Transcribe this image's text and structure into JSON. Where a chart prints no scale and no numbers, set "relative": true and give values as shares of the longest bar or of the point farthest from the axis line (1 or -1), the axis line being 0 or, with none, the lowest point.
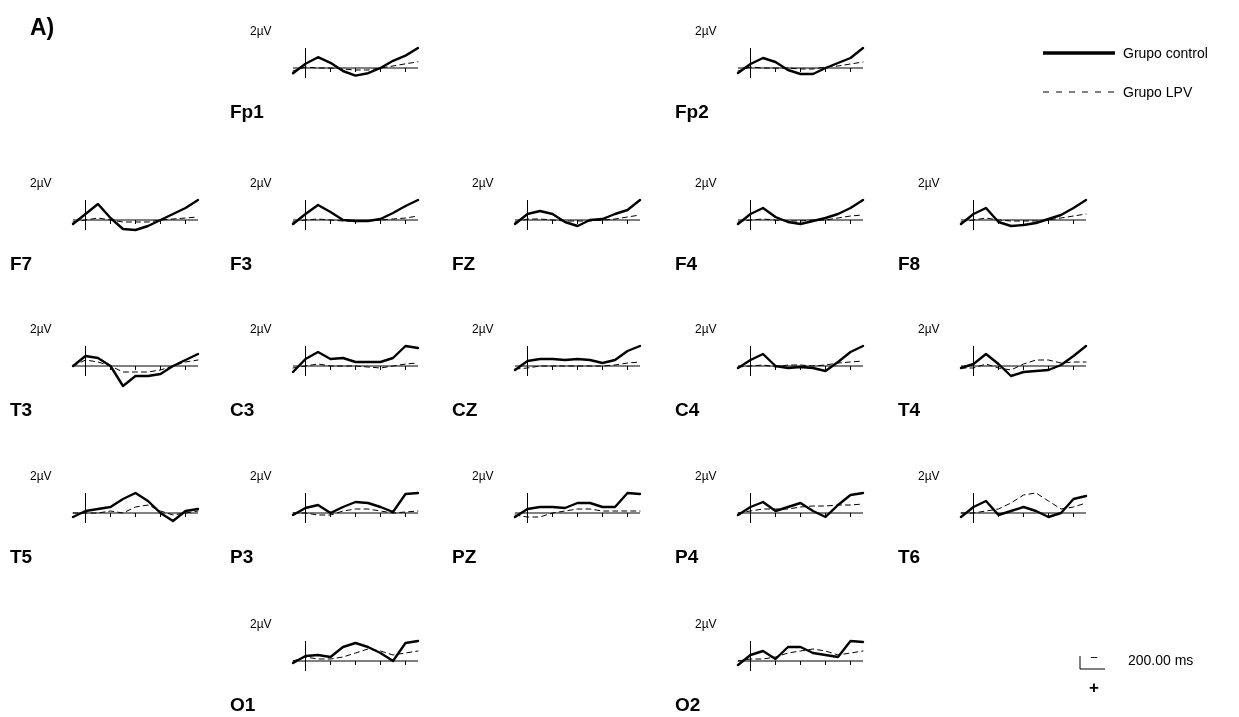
{
  "chart_data": [
    {
      "type": "line",
      "title": "Fp1",
      "ylabel": "2µV",
      "relative": true,
      "categories": [
        null,
        null,
        null,
        null,
        null,
        null,
        null,
        null,
        null,
        null,
        null
      ],
      "series": [
        {
          "color": "#000000",
          "line_style": "solid",
          "values": [
            -0.26,
            0.21,
            0.54,
            0.26,
            -0.15,
            -0.38,
            -0.26,
            0,
            0.36,
            0.62,
            1
          ]
        },
        {
          "color": "#000000",
          "line_style": "dashed",
          "values": [
            -0.15,
            0.05,
            0,
            0,
            -0.05,
            -0.1,
            -0.1,
            0,
            0.1,
            0.21,
            0.31
          ]
        }
      ]
    },
    {
      "type": "line",
      "title": "Fp2",
      "ylabel": "2µV",
      "relative": true,
      "legend": "right",
      "categories": [
        null,
        null,
        null,
        null,
        null,
        null,
        null,
        null,
        null,
        null,
        null
      ],
      "series": [
        {
          "name": "Grupo control",
          "color": "#000000",
          "line_style": "solid",
          "values": [
            -0.25,
            0.2,
            0.5,
            0.3,
            -0.1,
            -0.3,
            -0.3,
            0,
            0.25,
            0.5,
            1
          ]
        },
        {
          "name": "Grupo LPV",
          "color": "#000000",
          "line_style": "dashed",
          "values": [
            -0.15,
            0.05,
            0,
            0,
            0,
            -0.05,
            -0.05,
            0.05,
            0.1,
            0.2,
            0.3
          ]
        }
      ]
    },
    {
      "type": "line",
      "title": "F7",
      "ylabel": "2µV",
      "relative": true,
      "categories": [
        null,
        null,
        null,
        null,
        null,
        null,
        null,
        null,
        null,
        null,
        null
      ],
      "series": [
        {
          "color": "#000000",
          "line_style": "solid",
          "values": [
            -0.2,
            0.3,
            0.8,
            0.1,
            -0.45,
            -0.5,
            -0.3,
            0,
            0.3,
            0.6,
            1
          ]
        },
        {
          "color": "#000000",
          "line_style": "dashed",
          "values": [
            -0.1,
            0,
            0.1,
            0,
            -0.1,
            -0.1,
            -0.1,
            0,
            0.05,
            0.1,
            0.15
          ]
        }
      ]
    },
    {
      "type": "line",
      "title": "F3",
      "ylabel": "2µV",
      "relative": true,
      "categories": [
        null,
        null,
        null,
        null,
        null,
        null,
        null,
        null,
        null,
        null,
        null
      ],
      "series": [
        {
          "color": "#000000",
          "line_style": "solid",
          "values": [
            -0.2,
            0.3,
            0.75,
            0.4,
            0,
            -0.05,
            -0.05,
            0.05,
            0.35,
            0.7,
            1
          ]
        },
        {
          "color": "#000000",
          "line_style": "dashed",
          "values": [
            -0.1,
            0,
            0.05,
            0,
            -0.05,
            -0.05,
            -0.05,
            0,
            0.05,
            0.1,
            0.2
          ]
        }
      ]
    },
    {
      "type": "line",
      "title": "FZ",
      "ylabel": "2µV",
      "relative": true,
      "categories": [
        null,
        null,
        null,
        null,
        null,
        null,
        null,
        null,
        null,
        null,
        null
      ],
      "series": [
        {
          "color": "#000000",
          "line_style": "solid",
          "values": [
            -0.2,
            0.3,
            0.45,
            0.3,
            -0.1,
            -0.3,
            0,
            0.05,
            0.3,
            0.5,
            1
          ]
        },
        {
          "color": "#000000",
          "line_style": "dashed",
          "values": [
            -0.1,
            0.05,
            0.05,
            0,
            -0.05,
            -0.05,
            -0.05,
            0,
            0.05,
            0.15,
            0.25
          ]
        }
      ]
    },
    {
      "type": "line",
      "title": "F4",
      "ylabel": "2µV",
      "relative": true,
      "categories": [
        null,
        null,
        null,
        null,
        null,
        null,
        null,
        null,
        null,
        null,
        null
      ],
      "series": [
        {
          "color": "#000000",
          "line_style": "solid",
          "values": [
            -0.2,
            0.3,
            0.6,
            0.15,
            -0.1,
            -0.2,
            -0.05,
            0.1,
            0.3,
            0.6,
            1
          ]
        },
        {
          "color": "#000000",
          "line_style": "dashed",
          "values": [
            -0.1,
            0,
            0.05,
            0,
            -0.05,
            -0.05,
            0,
            0,
            0.1,
            0.2,
            0.25
          ]
        }
      ]
    },
    {
      "type": "line",
      "title": "F8",
      "ylabel": "2µV",
      "relative": true,
      "categories": [
        null,
        null,
        null,
        null,
        null,
        null,
        null,
        null,
        null,
        null,
        null
      ],
      "series": [
        {
          "color": "#000000",
          "line_style": "solid",
          "values": [
            -0.2,
            0.3,
            0.6,
            -0.1,
            -0.3,
            -0.25,
            -0.15,
            0.05,
            0.25,
            0.6,
            1
          ]
        },
        {
          "color": "#000000",
          "line_style": "dashed",
          "values": [
            -0.1,
            0,
            0.1,
            0,
            -0.05,
            -0.05,
            -0.05,
            0,
            0.1,
            0.2,
            0.3
          ]
        }
      ]
    },
    {
      "type": "line",
      "title": "T3",
      "ylabel": "2µV",
      "relative": true,
      "categories": [
        null,
        null,
        null,
        null,
        null,
        null,
        null,
        null,
        null,
        null,
        null
      ],
      "series": [
        {
          "color": "#000000",
          "line_style": "solid",
          "values": [
            0,
            0.5,
            0.4,
            0,
            -1,
            -0.5,
            -0.5,
            -0.4,
            0,
            0.3,
            0.6
          ]
        },
        {
          "color": "#000000",
          "line_style": "dashed",
          "values": [
            0,
            0.3,
            0.2,
            0,
            -0.3,
            -0.3,
            -0.3,
            -0.2,
            0,
            0.2,
            0.3
          ]
        }
      ]
    },
    {
      "type": "line",
      "title": "C3",
      "ylabel": "2µV",
      "relative": true,
      "categories": [
        null,
        null,
        null,
        null,
        null,
        null,
        null,
        null,
        null,
        null,
        null
      ],
      "series": [
        {
          "color": "#000000",
          "line_style": "solid",
          "values": [
            -0.3,
            0.35,
            0.7,
            0.35,
            0.4,
            0.2,
            0.2,
            0.2,
            0.4,
            1,
            0.9
          ]
        },
        {
          "color": "#000000",
          "line_style": "dashed",
          "values": [
            -0.1,
            0,
            0.1,
            0,
            0,
            0,
            -0.05,
            -0.1,
            0,
            0.1,
            0.15
          ]
        }
      ]
    },
    {
      "type": "line",
      "title": "CZ",
      "ylabel": "2µV",
      "relative": true,
      "categories": [
        null,
        null,
        null,
        null,
        null,
        null,
        null,
        null,
        null,
        null,
        null
      ],
      "series": [
        {
          "color": "#000000",
          "line_style": "solid",
          "values": [
            -0.2,
            0.25,
            0.35,
            0.35,
            0.3,
            0.35,
            0.3,
            0.15,
            0.3,
            0.75,
            1
          ]
        },
        {
          "color": "#000000",
          "line_style": "dashed",
          "values": [
            -0.15,
            -0.1,
            0,
            0,
            0,
            0,
            0,
            0,
            0.05,
            0.15,
            0.2
          ]
        }
      ]
    },
    {
      "type": "line",
      "title": "C4",
      "ylabel": "2µV",
      "relative": true,
      "categories": [
        null,
        null,
        null,
        null,
        null,
        null,
        null,
        null,
        null,
        null,
        null
      ],
      "series": [
        {
          "color": "#000000",
          "line_style": "solid",
          "values": [
            -0.1,
            0.3,
            0.6,
            0,
            -0.1,
            -0.05,
            -0.1,
            -0.25,
            0.2,
            0.7,
            1
          ]
        },
        {
          "color": "#000000",
          "line_style": "dashed",
          "values": [
            -0.05,
            0,
            0.05,
            -0.05,
            0.05,
            0.05,
            0,
            0.05,
            0.15,
            0.2,
            0.25
          ]
        }
      ]
    },
    {
      "type": "line",
      "title": "T4",
      "ylabel": "2µV",
      "relative": true,
      "categories": [
        null,
        null,
        null,
        null,
        null,
        null,
        null,
        null,
        null,
        null,
        null
      ],
      "series": [
        {
          "color": "#000000",
          "line_style": "solid",
          "values": [
            -0.1,
            0.1,
            0.6,
            0.1,
            -0.5,
            -0.3,
            -0.25,
            -0.2,
            0.05,
            0.5,
            1
          ]
        },
        {
          "color": "#000000",
          "line_style": "dashed",
          "values": [
            -0.1,
            -0.1,
            0.1,
            -0.1,
            -0.2,
            0.1,
            0.3,
            0.3,
            0.15,
            0.2,
            0.2
          ]
        }
      ]
    },
    {
      "type": "line",
      "title": "T5",
      "ylabel": "2µV",
      "relative": true,
      "categories": [
        null,
        null,
        null,
        null,
        null,
        null,
        null,
        null,
        null,
        null,
        null
      ],
      "series": [
        {
          "color": "#000000",
          "line_style": "solid",
          "values": [
            -0.2,
            0.1,
            0.2,
            0.3,
            0.7,
            1,
            0.6,
            0,
            -0.4,
            0.1,
            0.2
          ]
        },
        {
          "color": "#000000",
          "line_style": "dashed",
          "values": [
            0,
            0,
            0,
            0.1,
            0,
            0.3,
            0.4,
            0.1,
            -0.1,
            0,
            0.1
          ]
        }
      ]
    },
    {
      "type": "line",
      "title": "P3",
      "ylabel": "2µV",
      "relative": true,
      "categories": [
        null,
        null,
        null,
        null,
        null,
        null,
        null,
        null,
        null,
        null,
        null
      ],
      "series": [
        {
          "color": "#000000",
          "line_style": "solid",
          "values": [
            -0.1,
            0.25,
            0.4,
            0,
            0.3,
            0.55,
            0.5,
            0.3,
            0.05,
            0.95,
            1
          ]
        },
        {
          "color": "#000000",
          "line_style": "dashed",
          "values": [
            0,
            0,
            -0.1,
            -0.1,
            0.1,
            0.2,
            0.2,
            0.1,
            0,
            0.05,
            0.1
          ]
        }
      ]
    },
    {
      "type": "line",
      "title": "PZ",
      "ylabel": "2µV",
      "relative": true,
      "categories": [
        null,
        null,
        null,
        null,
        null,
        null,
        null,
        null,
        null,
        null,
        null
      ],
      "series": [
        {
          "color": "#000000",
          "line_style": "solid",
          "values": [
            -0.2,
            0.2,
            0.3,
            0.3,
            0.25,
            0.5,
            0.5,
            0.3,
            0.3,
            1,
            0.95
          ]
        },
        {
          "color": "#000000",
          "line_style": "dashed",
          "values": [
            -0.1,
            -0.2,
            -0.2,
            0,
            0.1,
            0.2,
            0.2,
            0.1,
            0.1,
            0.1,
            0.1
          ]
        }
      ]
    },
    {
      "type": "line",
      "title": "P4",
      "ylabel": "2µV",
      "relative": true,
      "categories": [
        null,
        null,
        null,
        null,
        null,
        null,
        null,
        null,
        null,
        null,
        null
      ],
      "series": [
        {
          "color": "#000000",
          "line_style": "solid",
          "values": [
            -0.1,
            0.3,
            0.55,
            0.1,
            0.3,
            0.5,
            0.1,
            -0.2,
            0.4,
            0.9,
            1
          ]
        },
        {
          "color": "#000000",
          "line_style": "dashed",
          "values": [
            0,
            0.1,
            0.2,
            0.2,
            0.2,
            0.3,
            0.35,
            0.35,
            0.4,
            0.4,
            0.45
          ]
        }
      ]
    },
    {
      "type": "line",
      "title": "T6",
      "ylabel": "2µV",
      "relative": true,
      "categories": [
        null,
        null,
        null,
        null,
        null,
        null,
        null,
        null,
        null,
        null,
        null
      ],
      "series": [
        {
          "color": "#000000",
          "line_style": "solid",
          "values": [
            -0.2,
            0.3,
            0.6,
            -0.1,
            0.1,
            0.3,
            0.1,
            -0.2,
            0,
            0.7,
            0.85
          ]
        },
        {
          "color": "#000000",
          "line_style": "dashed",
          "values": [
            0,
            0,
            0.1,
            0.2,
            0.5,
            0.9,
            1,
            0.6,
            0.2,
            0.3,
            0.5
          ]
        }
      ]
    },
    {
      "type": "line",
      "title": "O1",
      "ylabel": "2µV",
      "relative": true,
      "categories": [
        null,
        null,
        null,
        null,
        null,
        null,
        null,
        null,
        null,
        null,
        null
      ],
      "series": [
        {
          "color": "#000000",
          "line_style": "solid",
          "values": [
            -0.1,
            0.25,
            0.3,
            0.2,
            0.7,
            0.9,
            0.7,
            0.4,
            0,
            0.9,
            1
          ]
        },
        {
          "color": "#000000",
          "line_style": "dashed",
          "values": [
            0,
            0.2,
            0.1,
            0.1,
            0.2,
            0.4,
            0.6,
            0.5,
            0.3,
            0.4,
            0.5
          ]
        }
      ]
    },
    {
      "type": "line",
      "title": "O2",
      "ylabel": "2µV",
      "relative": true,
      "categories": [
        null,
        null,
        null,
        null,
        null,
        null,
        null,
        null,
        null,
        null,
        null
      ],
      "series": [
        {
          "color": "#000000",
          "line_style": "solid",
          "values": [
            -0.2,
            0.3,
            0.5,
            0.1,
            0.7,
            0.7,
            0.4,
            0.3,
            0.2,
            1,
            0.95
          ]
        },
        {
          "color": "#000000",
          "line_style": "dashed",
          "values": [
            0,
            0.1,
            0.1,
            0.2,
            0.4,
            0.5,
            0.6,
            0.5,
            0.3,
            0.4,
            0.5
          ]
        }
      ]
    },
    {
      "type": "other",
      "title": "A)",
      "annotations": [
        "−",
        "200.00 ms",
        "+"
      ]
    }
  ]
}
